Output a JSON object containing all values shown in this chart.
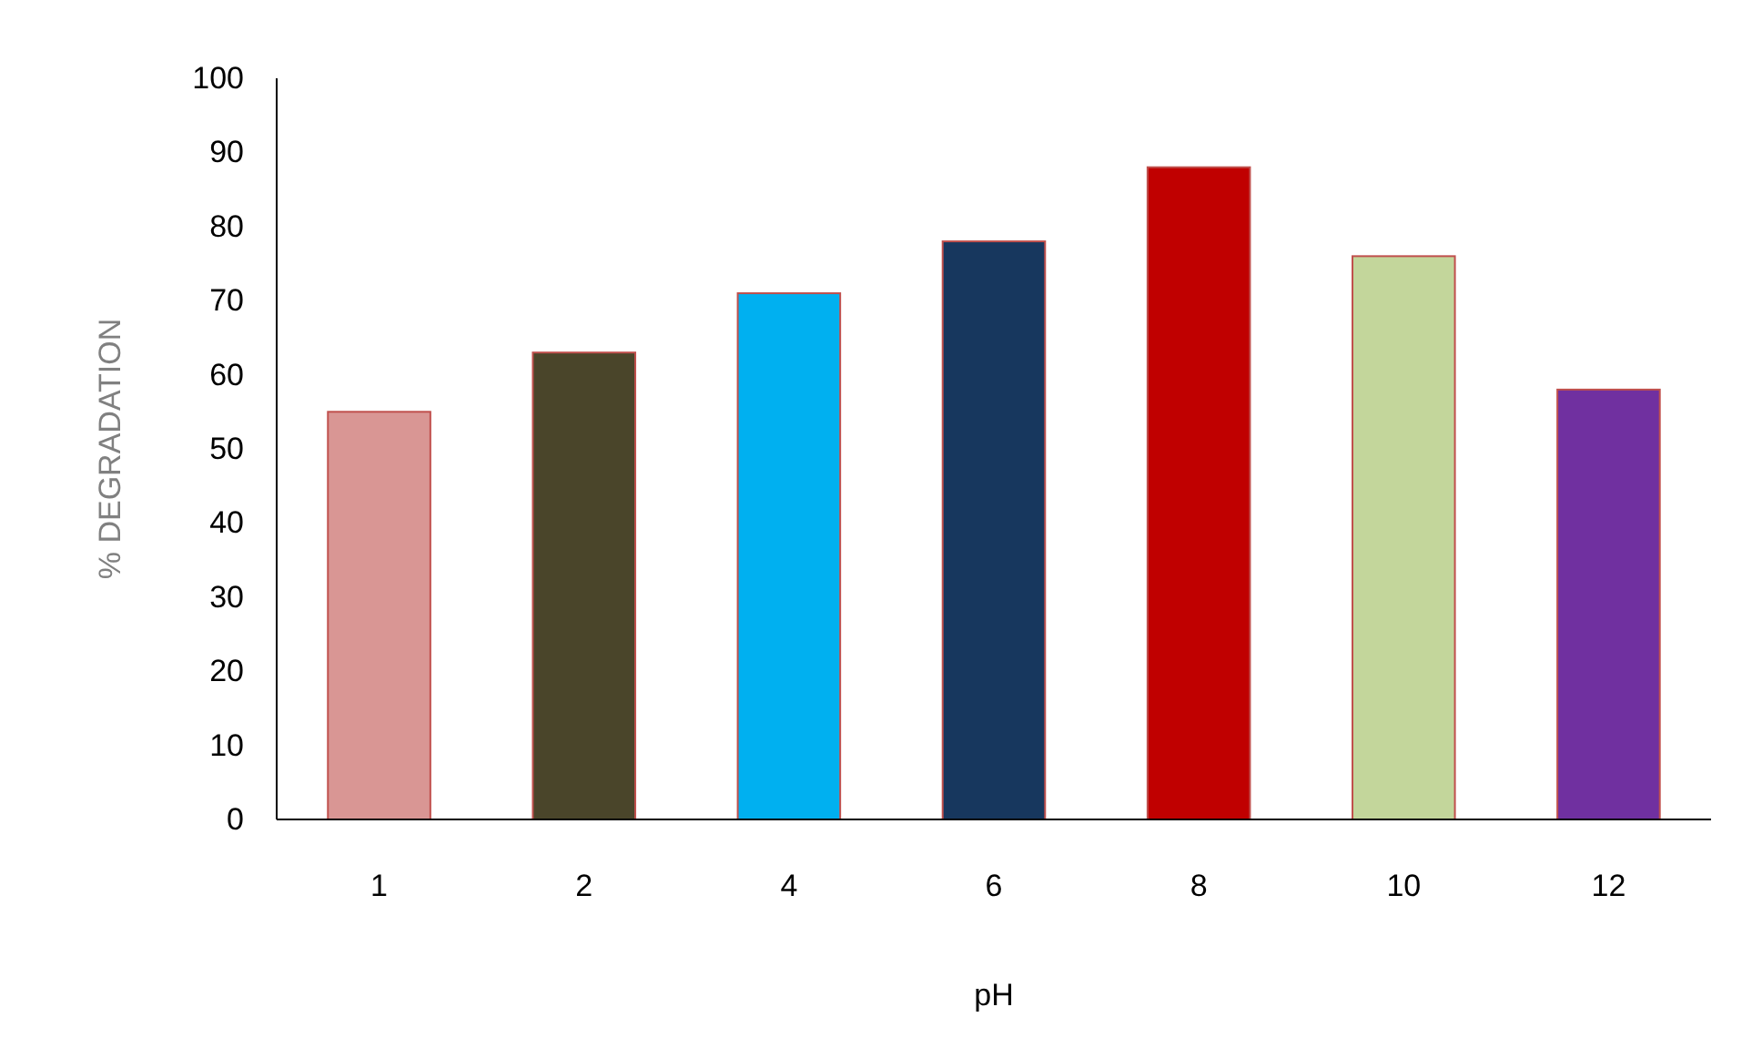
{
  "chart_data": {
    "type": "bar",
    "xlabel": "pH",
    "ylabel": "% DEGRADATION",
    "categories": [
      "1",
      "2",
      "4",
      "6",
      "8",
      "10",
      "12"
    ],
    "values": [
      55,
      63,
      71,
      78,
      88,
      76,
      58
    ],
    "colors": [
      "#d99694",
      "#4a452a",
      "#00b0f0",
      "#17375e",
      "#c00000",
      "#c3d69b",
      "#7030a0"
    ],
    "ylim": [
      0,
      100
    ],
    "yticks": [
      0,
      10,
      20,
      30,
      40,
      50,
      60,
      70,
      80,
      90,
      100
    ],
    "grid": false
  }
}
